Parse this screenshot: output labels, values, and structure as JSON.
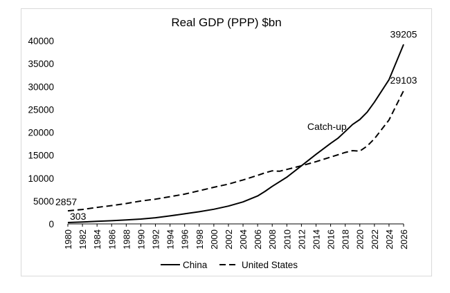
{
  "chart_data": {
    "type": "line",
    "title": "Real GDP (PPP) $bn",
    "xlabel": "",
    "ylabel": "",
    "ylim": [
      0,
      40000
    ],
    "yticks": [
      0,
      5000,
      10000,
      15000,
      20000,
      25000,
      30000,
      35000,
      40000
    ],
    "xlim": [
      1980,
      2026
    ],
    "xticks": [
      1980,
      1982,
      1984,
      1986,
      1988,
      1990,
      1992,
      1994,
      1996,
      1998,
      2000,
      2002,
      2004,
      2006,
      2008,
      2010,
      2012,
      2014,
      2016,
      2018,
      2020,
      2022,
      2024,
      2026
    ],
    "grid": false,
    "legend_position": "bottom",
    "series": [
      {
        "name": "China",
        "style": "solid",
        "color": "#000000",
        "points": [
          [
            1980,
            303
          ],
          [
            1982,
            420
          ],
          [
            1984,
            560
          ],
          [
            1986,
            700
          ],
          [
            1988,
            880
          ],
          [
            1990,
            1050
          ],
          [
            1992,
            1350
          ],
          [
            1994,
            1750
          ],
          [
            1996,
            2200
          ],
          [
            1998,
            2650
          ],
          [
            2000,
            3200
          ],
          [
            2002,
            3900
          ],
          [
            2004,
            4800
          ],
          [
            2006,
            6100
          ],
          [
            2007,
            7100
          ],
          [
            2008,
            8200
          ],
          [
            2010,
            10200
          ],
          [
            2012,
            12700
          ],
          [
            2014,
            15200
          ],
          [
            2016,
            17600
          ],
          [
            2017,
            18700
          ],
          [
            2018,
            20200
          ],
          [
            2019,
            21700
          ],
          [
            2020,
            22800
          ],
          [
            2021,
            24400
          ],
          [
            2022,
            26600
          ],
          [
            2024,
            31500
          ],
          [
            2026,
            39205
          ]
        ]
      },
      {
        "name": "United States",
        "style": "dashed",
        "color": "#000000",
        "points": [
          [
            1980,
            2857
          ],
          [
            1982,
            3150
          ],
          [
            1984,
            3600
          ],
          [
            1986,
            4000
          ],
          [
            1988,
            4450
          ],
          [
            1990,
            5000
          ],
          [
            1992,
            5400
          ],
          [
            1994,
            5950
          ],
          [
            1996,
            6500
          ],
          [
            1998,
            7250
          ],
          [
            2000,
            8000
          ],
          [
            2002,
            8700
          ],
          [
            2004,
            9600
          ],
          [
            2006,
            10600
          ],
          [
            2007,
            11150
          ],
          [
            2008,
            11600
          ],
          [
            2009,
            11500
          ],
          [
            2010,
            11900
          ],
          [
            2012,
            12700
          ],
          [
            2014,
            13600
          ],
          [
            2016,
            14600
          ],
          [
            2017,
            15100
          ],
          [
            2018,
            15600
          ],
          [
            2019,
            16000
          ],
          [
            2020,
            15900
          ],
          [
            2021,
            17000
          ],
          [
            2022,
            18600
          ],
          [
            2024,
            22700
          ],
          [
            2026,
            29103
          ]
        ]
      }
    ],
    "annotations": [
      {
        "text": "2857",
        "x": 1980,
        "y": 2857,
        "anchor": "above-left"
      },
      {
        "text": "303",
        "x": 1980,
        "y": 303,
        "anchor": "above"
      },
      {
        "text": "39205",
        "x": 2026,
        "y": 39205,
        "anchor": "above"
      },
      {
        "text": "29103",
        "x": 2026,
        "y": 29103,
        "anchor": "above"
      },
      {
        "text": "Catch-up",
        "x": 2015.5,
        "y": 20500,
        "anchor": "label"
      }
    ]
  }
}
